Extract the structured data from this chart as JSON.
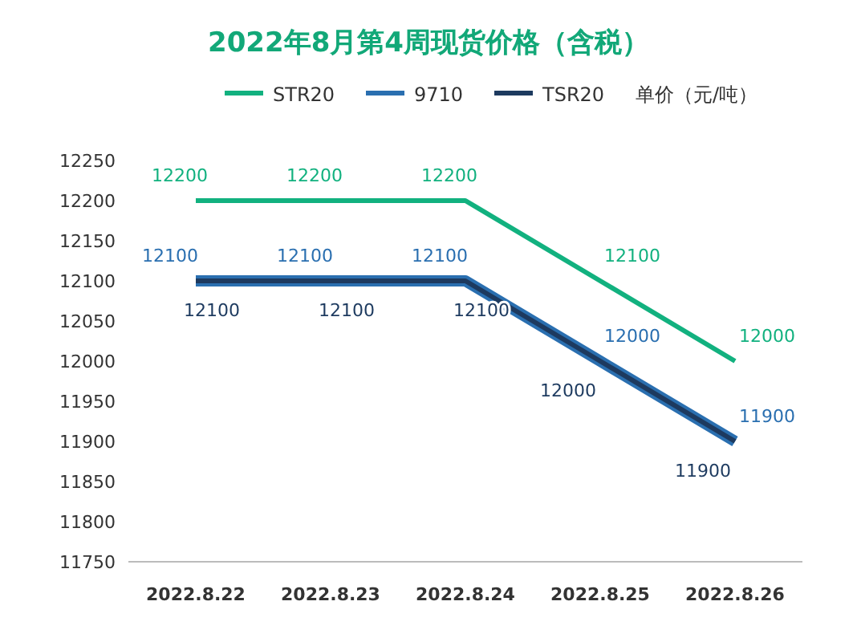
{
  "chart_data": {
    "type": "line",
    "title": "2022年8月第4周现货价格（含税）",
    "ylabel": "单价（元/吨）",
    "categories": [
      "2022.8.22",
      "2022.8.23",
      "2022.8.24",
      "2022.8.25",
      "2022.8.26"
    ],
    "series": [
      {
        "name": "STR20",
        "color": "#12b17f",
        "values": [
          12200,
          12200,
          12200,
          12100,
          12000
        ]
      },
      {
        "name": "9710",
        "color": "#2a6fb0",
        "values": [
          12100,
          12100,
          12100,
          12000,
          11900
        ]
      },
      {
        "name": "TSR20",
        "color": "#1d3a5f",
        "values": [
          12100,
          12100,
          12100,
          12000,
          11900
        ]
      }
    ],
    "ylim": [
      11750,
      12250
    ],
    "yticks": [
      11750,
      11800,
      11850,
      11900,
      11950,
      12000,
      12050,
      12100,
      12150,
      12200,
      12250
    ],
    "grid": false,
    "legend": "top",
    "data_labels": true,
    "marker": "none",
    "line_style": "solid"
  }
}
